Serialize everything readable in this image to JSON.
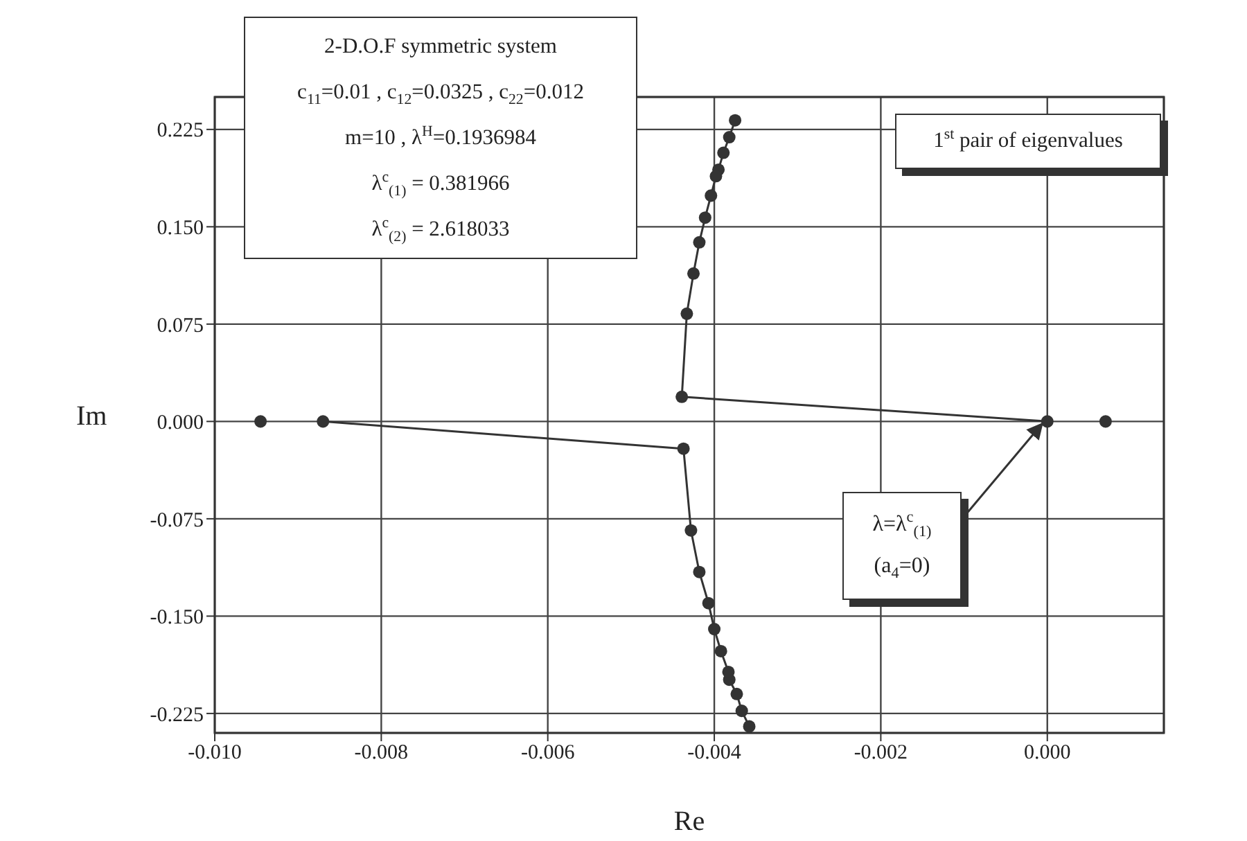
{
  "chart_data": {
    "type": "scatter",
    "xlabel": "Re",
    "ylabel": "Im",
    "xlim": [
      -0.01,
      0.0014
    ],
    "ylim": [
      -0.24,
      0.25
    ],
    "xticks": [
      {
        "value": -0.01,
        "label": "-0.010"
      },
      {
        "value": -0.008,
        "label": "-0.008"
      },
      {
        "value": -0.006,
        "label": "-0.006"
      },
      {
        "value": -0.004,
        "label": "-0.004"
      },
      {
        "value": -0.002,
        "label": "-0.002"
      },
      {
        "value": 0,
        "label": "0.000"
      }
    ],
    "yticks": [
      {
        "value": -0.225,
        "label": "-0.225"
      },
      {
        "value": -0.15,
        "label": "-0.150"
      },
      {
        "value": -0.075,
        "label": "-0.075"
      },
      {
        "value": 0,
        "label": "0.000"
      },
      {
        "value": 0.075,
        "label": "0.075"
      },
      {
        "value": 0.15,
        "label": "0.150"
      },
      {
        "value": 0.225,
        "label": "0.225"
      }
    ],
    "grid": true,
    "marker": "circle",
    "series": [
      {
        "type": "line",
        "color": "#333333",
        "x": [
          -0.00375,
          -0.00382,
          -0.00389,
          -0.00395,
          -0.00398,
          -0.00404,
          -0.00411,
          -0.00418,
          -0.00425,
          -0.00433,
          -0.00439,
          0
        ],
        "values": [
          0.232,
          0.219,
          0.207,
          0.194,
          0.189,
          0.174,
          0.157,
          0.138,
          0.114,
          0.083,
          0.019,
          0
        ]
      },
      {
        "type": "line",
        "color": "#333333",
        "x": [
          -0.00358,
          -0.00367,
          -0.00373,
          -0.00382,
          -0.00383,
          -0.00392,
          -0.004,
          -0.00407,
          -0.00418,
          -0.00428,
          -0.00437,
          -0.0087
        ],
        "values": [
          -0.235,
          -0.223,
          -0.21,
          -0.199,
          -0.193,
          -0.177,
          -0.16,
          -0.14,
          -0.116,
          -0.084,
          -0.021,
          0
        ]
      },
      {
        "color": "#333333",
        "x": [
          -0.00945,
          0.0007
        ],
        "values": [
          0,
          0
        ]
      }
    ],
    "annotations": [
      "2-D.O.F symmetric system",
      "c$_{11}$=0.01 , c$_{12}$=0.0325 , c$_{22}$=0.012",
      "m=10 , λ$^{H}$=0.1936984",
      "λ$^{c}$$_{(1)}$ = 0.381966",
      "λ$^{c}$$_{(2)}$ = 2.618033",
      "1$^{st}$ pair of eigenvalues",
      "λ=λ$^{c}$$_{(1)}$",
      "(a$_{4}$=0)"
    ]
  }
}
